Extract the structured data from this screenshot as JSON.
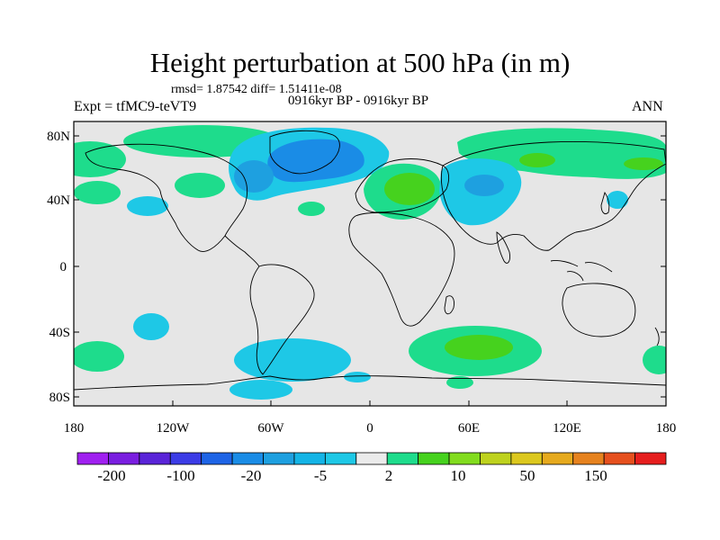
{
  "title": "Height perturbation at 500 hPa (in m)",
  "stats": "rmsd= 1.87542 diff= 1.51411e-08",
  "period": "0916kyr BP - 0916kyr BP",
  "experiment": "Expt = tfMC9-teVT9",
  "season": "ANN",
  "y_ticks": [
    "80N",
    "40N",
    "0",
    "40S",
    "80S"
  ],
  "x_ticks": [
    "180",
    "120W",
    "60W",
    "0",
    "60E",
    "120E",
    "180"
  ],
  "colorbar": {
    "colors": [
      "#a020f0",
      "#7a1ee0",
      "#5a24d8",
      "#3c3ce6",
      "#1e64e6",
      "#1a8ce6",
      "#1ea0e0",
      "#14b4e6",
      "#1ec8e6",
      "#ebebeb",
      "#1edc8c",
      "#46d21e",
      "#82dc1e",
      "#bed21e",
      "#dcc81e",
      "#e6aa1e",
      "#e6821e",
      "#e6501e",
      "#e61e1e"
    ],
    "labels": [
      "-200",
      "-100",
      "-20",
      "-5",
      "2",
      "10",
      "50",
      "150"
    ]
  },
  "map_colors": {
    "background": "#e6e6e6",
    "cyan": "#1ec8e6",
    "light_blue": "#1ea0e0",
    "blue": "#1a8ce6",
    "teal": "#1edc8c",
    "green": "#46d21e",
    "coast": "#000000"
  }
}
